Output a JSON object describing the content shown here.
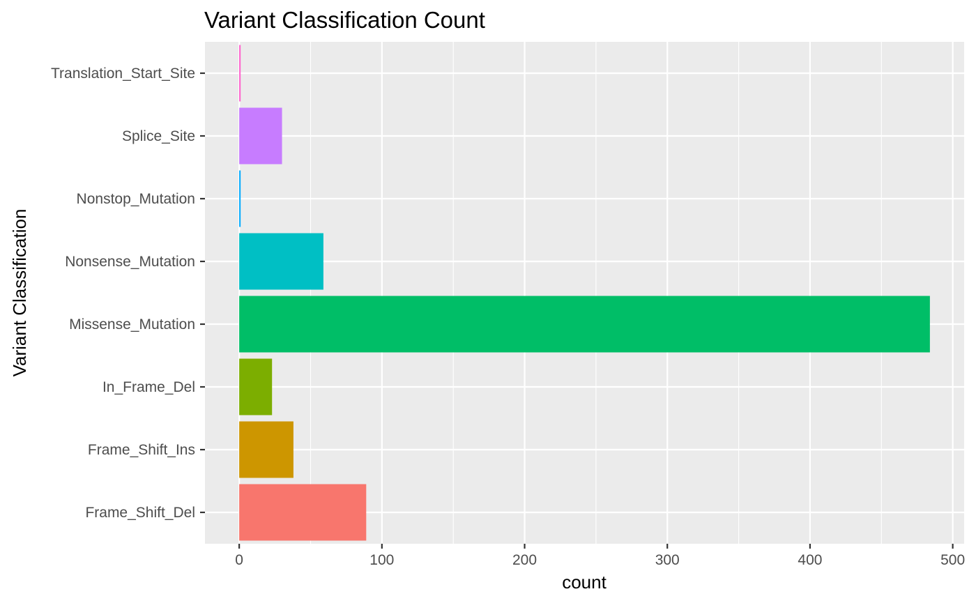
{
  "chart_data": {
    "type": "bar",
    "orientation": "horizontal",
    "title": "Variant Classification Count",
    "xlabel": "count",
    "ylabel": "Variant Classification",
    "xlim": [
      -24,
      508
    ],
    "xticks": [
      0,
      100,
      200,
      300,
      400,
      500
    ],
    "grid": true,
    "legend": "none",
    "categories": [
      "Frame_Shift_Del",
      "Frame_Shift_Ins",
      "In_Frame_Del",
      "Missense_Mutation",
      "Nonsense_Mutation",
      "Nonstop_Mutation",
      "Splice_Site",
      "Translation_Start_Site"
    ],
    "values": [
      89,
      38,
      23,
      484,
      59,
      1,
      30,
      1
    ],
    "colors": [
      "#F8766D",
      "#CD9600",
      "#7CAE00",
      "#00BE67",
      "#00BFC4",
      "#00A9FF",
      "#C77CFF",
      "#FF61CC"
    ],
    "panel_background": "#EBEBEB",
    "grid_color": "#FFFFFF"
  }
}
